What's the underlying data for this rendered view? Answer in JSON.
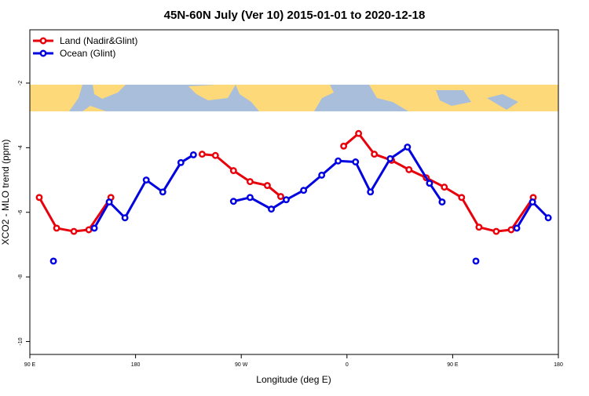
{
  "chart_data": {
    "type": "line",
    "title": "45N-60N July (Ver 10)   2015-01-01 to 2020-12-18",
    "xlabel": "Longitude (deg E)",
    "ylabel": "XCO2 - MLO trend (ppm)",
    "xlim": [
      90,
      540
    ],
    "ylim": [
      -10.4,
      -0.35
    ],
    "xticks": [
      {
        "value": 90,
        "label": "90 E"
      },
      180,
      {
        "value": 270,
        "label": "90 W"
      },
      {
        "value": 360,
        "label": "0"
      },
      {
        "value": 450,
        "label": "90 E"
      },
      {
        "value": 540,
        "label": "180"
      }
    ],
    "yticks": [
      -2,
      -4,
      -6,
      -8,
      -10
    ],
    "legend": "top-left",
    "series": [
      {
        "name": "Land (Nadir&Glint)",
        "color": "#e8000b",
        "x": [
          98.0,
          112.8,
          127.5,
          140.2,
          159.0,
          null,
          236.7,
          248.0,
          263.4,
          277.5,
          292.2,
          303.6,
          null,
          357.2,
          369.9,
          383.3,
          398.0,
          412.8,
          427.5,
          442.9,
          457.6,
          472.4,
          487.1,
          499.8,
          518.6
        ],
        "values": [
          -5.54,
          -6.49,
          -6.59,
          -6.54,
          -5.54,
          null,
          -4.2,
          -4.24,
          -4.71,
          -5.05,
          -5.17,
          -5.51,
          null,
          -3.95,
          -3.56,
          -4.2,
          -4.39,
          -4.68,
          -4.93,
          -5.22,
          -5.54,
          -6.46,
          -6.59,
          -6.54,
          -5.54
        ]
      },
      {
        "name": "Ocean (Glint)",
        "color": "#0000e0",
        "x": [
          110.1,
          null,
          144.9,
          157.6,
          171.0,
          189.1,
          203.2,
          218.6,
          229.3,
          null,
          263.4,
          277.5,
          295.6,
          308.3,
          323.1,
          338.5,
          352.5,
          367.3,
          380.0,
          396.8,
          411.5,
          430.3,
          441.0,
          null,
          469.8,
          null,
          504.6,
          518.0,
          531.4
        ],
        "values": [
          -7.51,
          null,
          -6.49,
          -5.68,
          -6.17,
          -5.0,
          -5.37,
          -4.46,
          -4.22,
          null,
          -5.66,
          -5.54,
          -5.9,
          -5.61,
          -5.32,
          -4.85,
          -4.41,
          -4.44,
          -5.37,
          -4.34,
          -3.98,
          -5.1,
          -5.68,
          null,
          -7.51,
          null,
          -6.49,
          -5.68,
          -6.17
        ]
      }
    ]
  }
}
